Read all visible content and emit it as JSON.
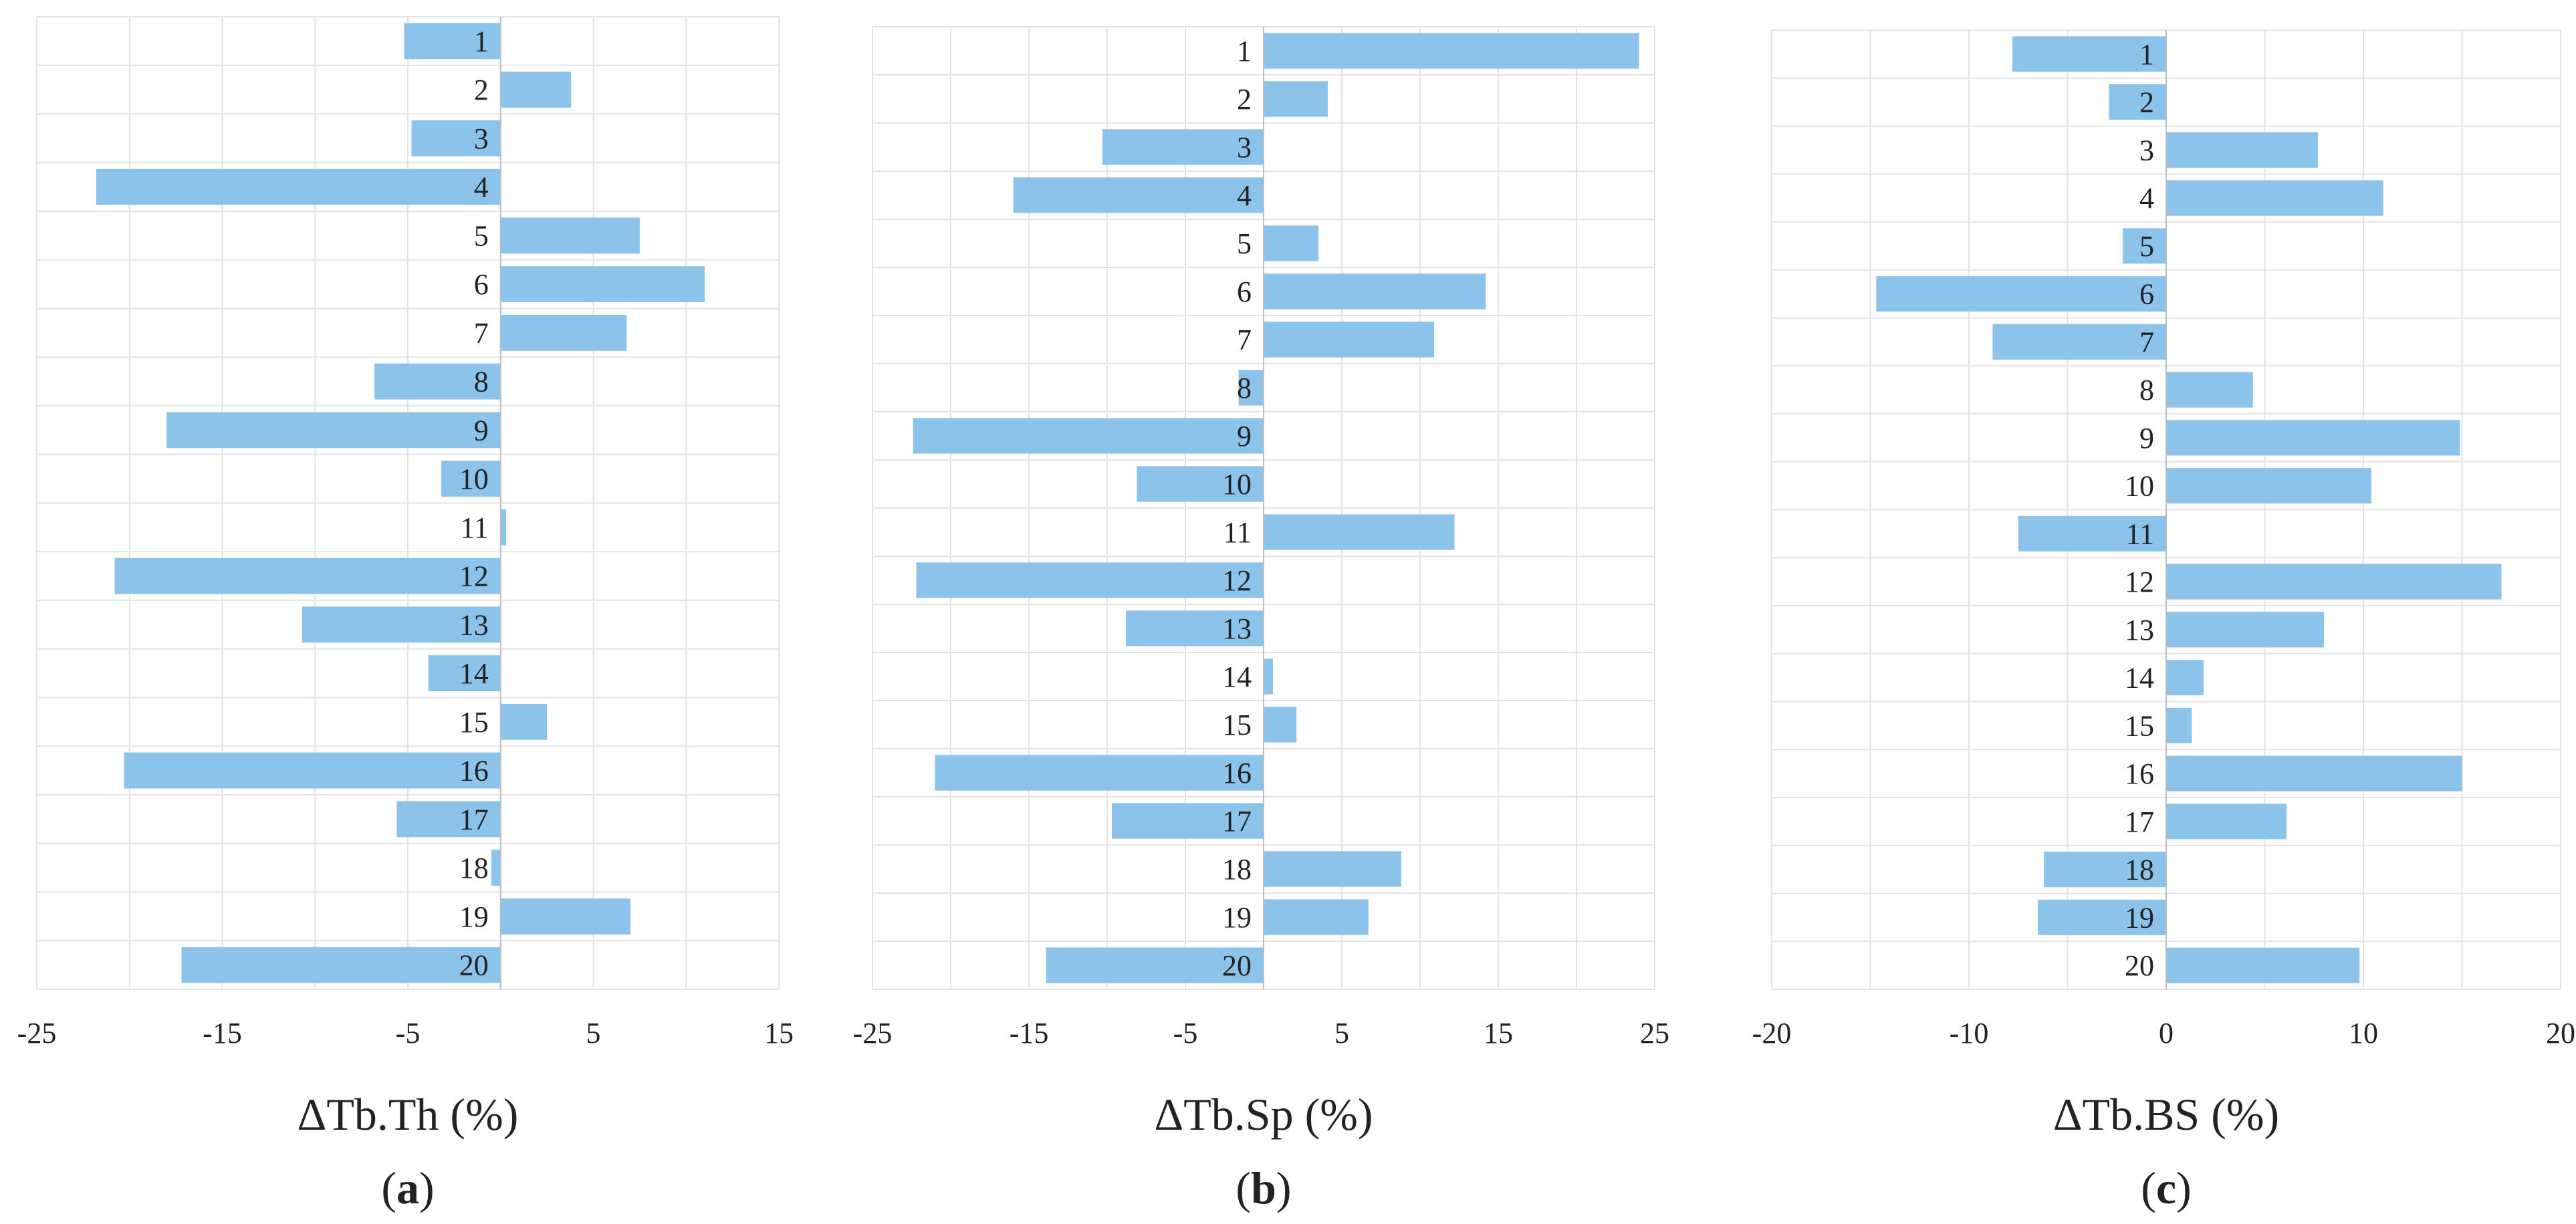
{
  "chart_data": [
    {
      "type": "bar",
      "orientation": "horizontal",
      "categories": [
        "1",
        "2",
        "3",
        "4",
        "5",
        "6",
        "7",
        "8",
        "9",
        "10",
        "11",
        "12",
        "13",
        "14",
        "15",
        "16",
        "17",
        "18",
        "19",
        "20"
      ],
      "values": [
        -5.2,
        3.8,
        -4.8,
        -21.8,
        7.5,
        11.0,
        6.8,
        -6.8,
        -18.0,
        -3.2,
        0.3,
        -20.8,
        -10.7,
        -3.9,
        2.5,
        -20.3,
        -5.6,
        -0.5,
        7.0,
        -17.2
      ],
      "xlim": [
        -25,
        15
      ],
      "xticks": [
        -25,
        -15,
        -5,
        5,
        15
      ],
      "xlabel": "ΔTb.Th (%)",
      "panel": {
        "open": "(",
        "letter": "a",
        "close": ")"
      },
      "grid": true,
      "color": "#8cc3ea"
    },
    {
      "type": "bar",
      "orientation": "horizontal",
      "categories": [
        "1",
        "2",
        "3",
        "4",
        "5",
        "6",
        "7",
        "8",
        "9",
        "10",
        "11",
        "12",
        "13",
        "14",
        "15",
        "16",
        "17",
        "18",
        "19",
        "20"
      ],
      "values": [
        24.0,
        4.1,
        -10.3,
        -16.0,
        3.5,
        14.2,
        10.9,
        -1.6,
        -22.4,
        -8.1,
        12.2,
        -22.2,
        -8.8,
        0.6,
        2.1,
        -21.0,
        -9.7,
        8.8,
        6.7,
        -13.9
      ],
      "xlim": [
        -25,
        25
      ],
      "xticks": [
        -25,
        -15,
        -5,
        5,
        15,
        25
      ],
      "xlabel": "ΔTb.Sp (%)",
      "panel": {
        "open": "(",
        "letter": "b",
        "close": ")"
      },
      "grid": true,
      "color": "#8cc3ea"
    },
    {
      "type": "bar",
      "orientation": "horizontal",
      "categories": [
        "1",
        "2",
        "3",
        "4",
        "5",
        "6",
        "7",
        "8",
        "9",
        "10",
        "11",
        "12",
        "13",
        "14",
        "15",
        "16",
        "17",
        "18",
        "19",
        "20"
      ],
      "values": [
        -7.8,
        -2.9,
        7.7,
        11.0,
        -2.2,
        -14.7,
        -8.8,
        4.4,
        14.9,
        10.4,
        -7.5,
        17.0,
        8.0,
        1.9,
        1.3,
        15.0,
        6.1,
        -6.2,
        -6.5,
        9.8
      ],
      "xlim": [
        -20,
        20
      ],
      "xticks": [
        -20,
        -10,
        0,
        10,
        20
      ],
      "xlabel": "ΔTb.BS (%)",
      "panel": {
        "open": "(",
        "letter": "c",
        "close": ")"
      },
      "grid": true,
      "color": "#8cc3ea"
    }
  ]
}
